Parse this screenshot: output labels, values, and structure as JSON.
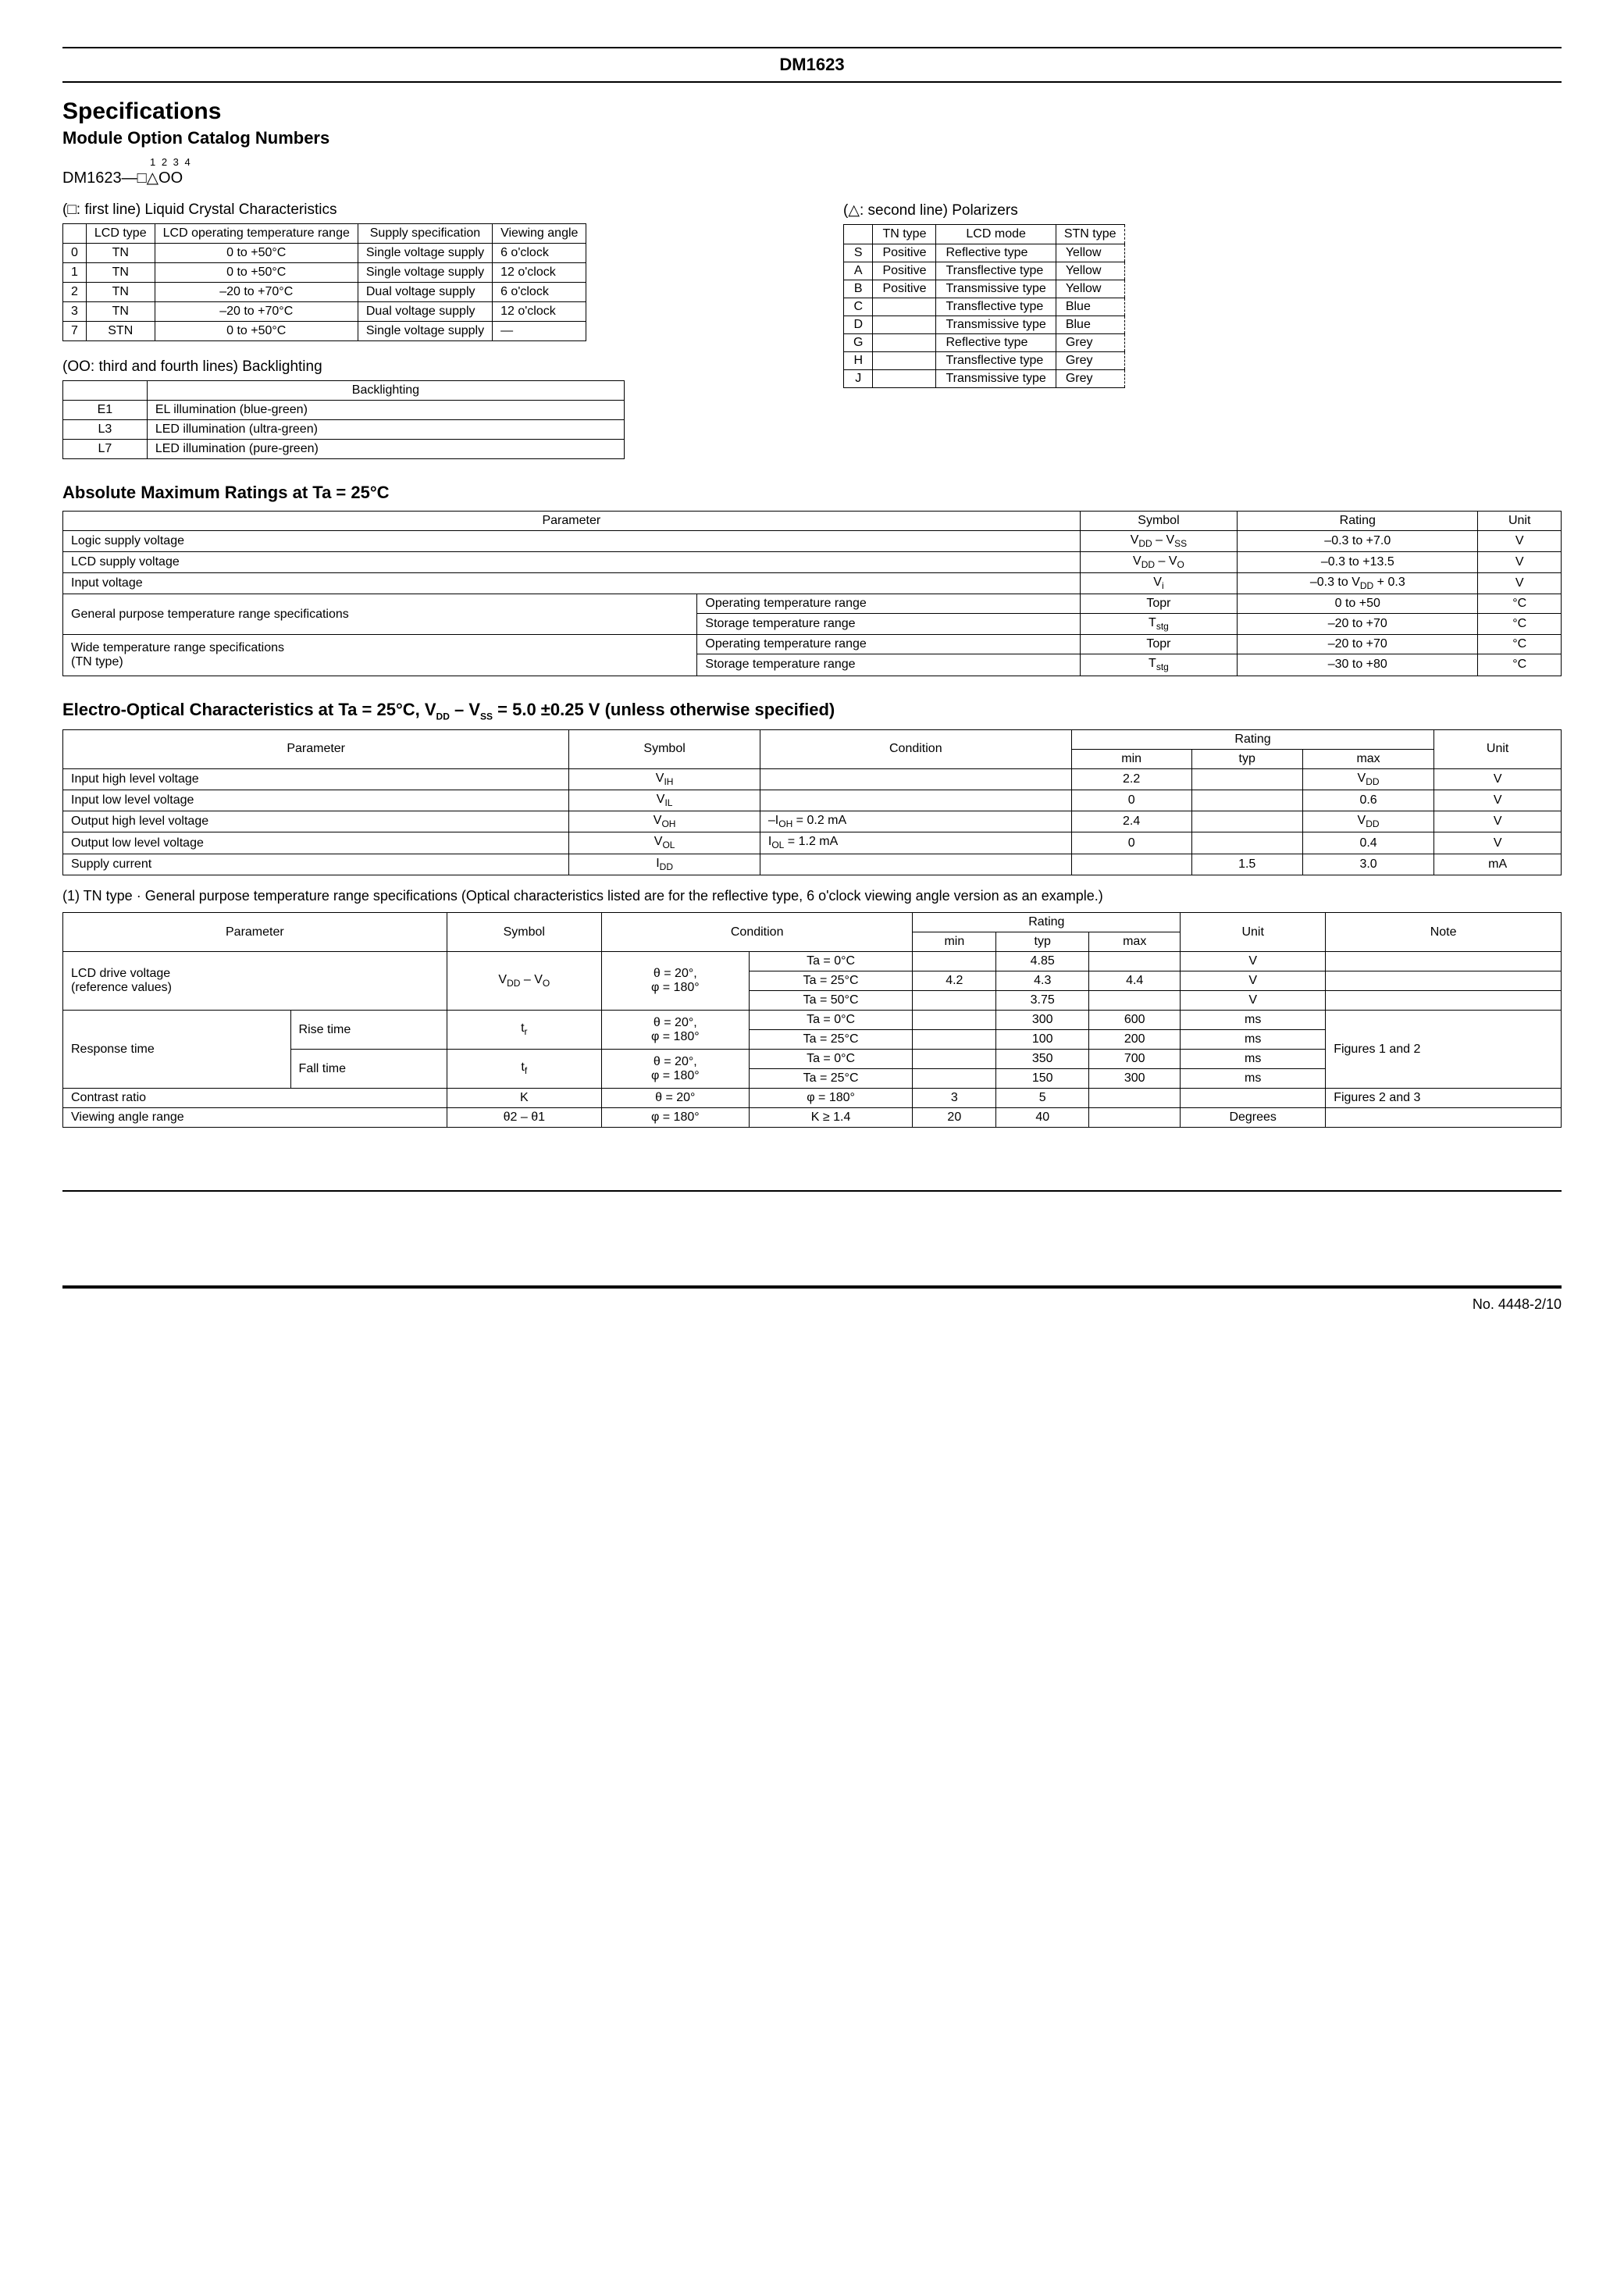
{
  "header": {
    "title": "DM1623"
  },
  "titles": {
    "specs": "Specifications",
    "module_option": "Module Option Catalog Numbers",
    "abs_max": "Absolute Maximum Ratings at Ta = 25°C",
    "electro": "Electro-Optical Characteristics at Ta = 25°C, V",
    "electro_sub1": "DD",
    "electro_mid": " – V",
    "electro_sub2": "SS",
    "electro_tail": " = 5.0 ±0.25 V (unless otherwise specified)"
  },
  "catalog": {
    "nums": "1 2 3 4",
    "code": "DM1623—□△OO",
    "first_line": "(□: first line) Liquid Crystal Characteristics",
    "second_line": "(△: second line) Polarizers",
    "third_line": "(OO: third and fourth lines) Backlighting"
  },
  "lcd_table": {
    "headers": [
      "",
      "LCD type",
      "LCD operating temperature range",
      "Supply specification",
      "Viewing angle"
    ],
    "rows": [
      [
        "0",
        "TN",
        "0 to +50°C",
        "Single voltage supply",
        "6 o'clock"
      ],
      [
        "1",
        "TN",
        "0 to +50°C",
        "Single voltage supply",
        "12 o'clock"
      ],
      [
        "2",
        "TN",
        "–20 to +70°C",
        "Dual voltage supply",
        "6 o'clock"
      ],
      [
        "3",
        "TN",
        "–20 to +70°C",
        "Dual voltage supply",
        "12 o'clock"
      ],
      [
        "7",
        "STN",
        "0 to +50°C",
        "Single voltage supply",
        "—"
      ]
    ]
  },
  "polarizer_table": {
    "headers": [
      "",
      "TN type",
      "LCD mode",
      "STN type"
    ],
    "rows": [
      [
        "S",
        "Positive",
        "Reflective type",
        "Yellow"
      ],
      [
        "A",
        "Positive",
        "Transflective type",
        "Yellow"
      ],
      [
        "B",
        "Positive",
        "Transmissive type",
        "Yellow"
      ],
      [
        "C",
        "",
        "Transflective type",
        "Blue"
      ],
      [
        "D",
        "",
        "Transmissive type",
        "Blue"
      ],
      [
        "G",
        "",
        "Reflective type",
        "Grey"
      ],
      [
        "H",
        "",
        "Transflective type",
        "Grey"
      ],
      [
        "J",
        "",
        "Transmissive type",
        "Grey"
      ]
    ]
  },
  "backlight_table": {
    "header": "Backlighting",
    "rows": [
      [
        "E1",
        "EL illumination (blue-green)"
      ],
      [
        "L3",
        "LED illumination (ultra-green)"
      ],
      [
        "L7",
        "LED illumination (pure-green)"
      ]
    ]
  },
  "abs_max_table": {
    "headers": [
      "Parameter",
      "Symbol",
      "Rating",
      "Unit"
    ],
    "r1": {
      "p": "Logic supply voltage",
      "s": "V_DD – V_SS",
      "r": "–0.3 to +7.0",
      "u": "V"
    },
    "r2": {
      "p": "LCD supply voltage",
      "s": "V_DD – V_O",
      "r": "–0.3 to +13.5",
      "u": "V"
    },
    "r3": {
      "p": "Input voltage",
      "s": "V_i",
      "r": "–0.3 to V_DD + 0.3",
      "u": "V"
    },
    "r4": {
      "p1": "General purpose temperature range specifications",
      "p2": "Operating temperature range",
      "s": "Topr",
      "r": "0 to +50",
      "u": "°C"
    },
    "r5": {
      "p2": "Storage temperature range",
      "s": "T_stg",
      "r": "–20 to +70",
      "u": "°C"
    },
    "r6": {
      "p1": "Wide temperature range specifications",
      "p1b": "(TN type)",
      "p2": "Operating temperature range",
      "s": "Topr",
      "r": "–20 to +70",
      "u": "°C"
    },
    "r7": {
      "p2": "Storage temperature range",
      "s": "T_stg",
      "r": "–30 to +80",
      "u": "°C"
    }
  },
  "electro_table": {
    "headers": {
      "param": "Parameter",
      "symbol": "Symbol",
      "condition": "Condition",
      "rating": "Rating",
      "min": "min",
      "typ": "typ",
      "max": "max",
      "unit": "Unit"
    },
    "rows": [
      {
        "p": "Input high level voltage",
        "s": "V_IH",
        "c": "",
        "min": "2.2",
        "typ": "",
        "max": "V_DD",
        "u": "V"
      },
      {
        "p": "Input low level voltage",
        "s": "V_IL",
        "c": "",
        "min": "0",
        "typ": "",
        "max": "0.6",
        "u": "V"
      },
      {
        "p": "Output high level voltage",
        "s": "V_OH",
        "c": "–I_OH = 0.2 mA",
        "min": "2.4",
        "typ": "",
        "max": "V_DD",
        "u": "V"
      },
      {
        "p": "Output low level voltage",
        "s": "V_OL",
        "c": "I_OL = 1.2 mA",
        "min": "0",
        "typ": "",
        "max": "0.4",
        "u": "V"
      },
      {
        "p": "Supply current",
        "s": "I_DD",
        "c": "",
        "min": "",
        "typ": "1.5",
        "max": "3.0",
        "u": "mA"
      }
    ]
  },
  "tn_note": "(1) TN type · General purpose temperature range specifications (Optical characteristics listed are for the reflective type, 6 o'clock viewing angle version as an example.)",
  "tn_table": {
    "headers": {
      "param": "Parameter",
      "symbol": "Symbol",
      "condition": "Condition",
      "rating": "Rating",
      "min": "min",
      "typ": "typ",
      "max": "max",
      "unit": "Unit",
      "note": "Note"
    },
    "r1": {
      "p": "LCD drive voltage",
      "pb": "(reference values)",
      "s": "V_DD – V_O",
      "c1": "θ = 20°,",
      "c1b": "φ = 180°",
      "c2": "Ta = 0°C",
      "min": "",
      "typ": "4.85",
      "max": "",
      "u": "V",
      "n": ""
    },
    "r2": {
      "c2": "Ta = 25°C",
      "min": "4.2",
      "typ": "4.3",
      "max": "4.4",
      "u": "V",
      "n": ""
    },
    "r3": {
      "c2": "Ta = 50°C",
      "min": "",
      "typ": "3.75",
      "max": "",
      "u": "V",
      "n": ""
    },
    "r4": {
      "p": "Response time",
      "pb": "Rise time",
      "s": "t_r",
      "c1": "θ = 20°,",
      "c1b": "φ = 180°",
      "c2": "Ta = 0°C",
      "min": "",
      "typ": "300",
      "max": "600",
      "u": "ms",
      "n": "Figures 1 and 2"
    },
    "r5": {
      "c2": "Ta = 25°C",
      "min": "",
      "typ": "100",
      "max": "200",
      "u": "ms",
      "n": ""
    },
    "r6": {
      "pb": "Fall time",
      "s": "t_f",
      "c1": "θ = 20°,",
      "c1b": "φ = 180°",
      "c2": "Ta = 0°C",
      "min": "",
      "typ": "350",
      "max": "700",
      "u": "ms",
      "n": ""
    },
    "r7": {
      "c2": "Ta = 25°C",
      "min": "",
      "typ": "150",
      "max": "300",
      "u": "ms",
      "n": ""
    },
    "r8": {
      "p": "Contrast ratio",
      "s": "K",
      "c1": "θ = 20°",
      "c2": "φ = 180°",
      "min": "3",
      "typ": "5",
      "max": "",
      "u": "",
      "n": "Figures 2 and 3"
    },
    "r9": {
      "p": "Viewing angle range",
      "s": "θ2 – θ1",
      "c1": "φ = 180°",
      "c2": "K ≥ 1.4",
      "min": "20",
      "typ": "40",
      "max": "",
      "u": "Degrees",
      "n": ""
    }
  },
  "footer": {
    "page": "No. 4448-2/10"
  }
}
